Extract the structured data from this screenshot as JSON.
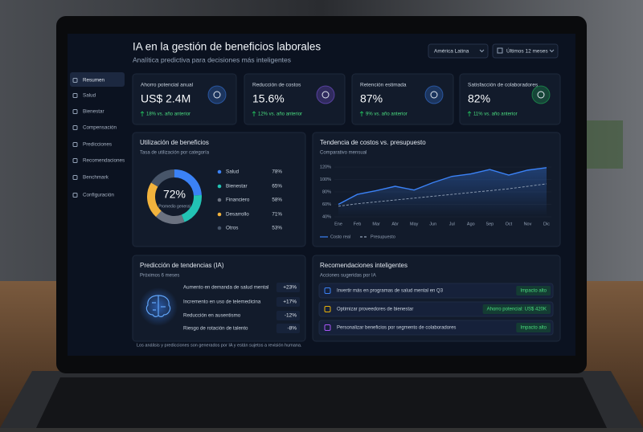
{
  "header": {
    "title": "IA en la gestión de beneficios laborales",
    "subtitle": "Analítica predictiva para decisiones más inteligentes",
    "region": "América Latina",
    "period": "Últimos 12 meses"
  },
  "sidebar": [
    "Resumen",
    "Salud",
    "Bienestar",
    "Compensación",
    "Predicciones",
    "Recomendaciones",
    "Benchmark",
    "Configuración"
  ],
  "kpis": [
    {
      "label": "Ahorro potencial anual",
      "value": "US$ 2.4M",
      "change": "18% vs. año anterior"
    },
    {
      "label": "Reducción de costos",
      "value": "15.6%",
      "change": "12% vs. año anterior"
    },
    {
      "label": "Retención estimada",
      "value": "87%",
      "change": "9% vs. año anterior"
    },
    {
      "label": "Satisfacción de colaboradores",
      "value": "82%",
      "change": "11% vs. año anterior"
    }
  ],
  "utilization": {
    "title": "Utilización de beneficios",
    "subtitle": "Tasa de utilización por categoría",
    "center_value": "72%",
    "center_label": "Promedio general",
    "categories": [
      "Salud",
      "Bienestar",
      "Financiero",
      "Desarrollo",
      "Otros"
    ],
    "values": [
      78,
      65,
      58,
      71,
      53
    ],
    "value_labels": [
      "78%",
      "65%",
      "58%",
      "71%",
      "53%"
    ],
    "colors": [
      "#3b82f6",
      "#22c3b4",
      "#6b7280",
      "#f2b33d",
      "#475569"
    ]
  },
  "trend": {
    "type": "line",
    "title": "Tendencia de costos vs. presupuesto",
    "subtitle": "Comparativo mensual",
    "categories": [
      "Ene",
      "Feb",
      "Mar",
      "Abr",
      "May",
      "Jun",
      "Jul",
      "Ago",
      "Sep",
      "Oct",
      "Nov",
      "Dic"
    ],
    "series": [
      {
        "name": "Costo real",
        "color": "#3b82f6",
        "values": [
          60,
          76,
          82,
          89,
          83,
          95,
          105,
          109,
          116,
          107,
          115,
          119
        ]
      },
      {
        "name": "Presupuesto",
        "color": "#94a3b8",
        "values": [
          57,
          61,
          64,
          67,
          70,
          73,
          76,
          79,
          82,
          85,
          89,
          93
        ]
      }
    ],
    "ylim": [
      40,
      120
    ],
    "yticks": [
      {
        "value": 40,
        "label": "40%"
      },
      {
        "value": 60,
        "label": "60%"
      },
      {
        "value": 80,
        "label": "80%"
      },
      {
        "value": 100,
        "label": "100%"
      },
      {
        "value": 120,
        "label": "120%"
      }
    ]
  },
  "predictions": {
    "title": "Predicción de tendencias (IA)",
    "subtitle": "Próximos 6 meses",
    "items": [
      {
        "label": "Aumento en demanda de salud mental",
        "value": "+23%"
      },
      {
        "label": "Incremento en uso de telemedicina",
        "value": "+17%"
      },
      {
        "label": "Reducción en ausentismo",
        "value": "-12%"
      },
      {
        "label": "Riesgo de rotación de talento",
        "value": "-8%"
      }
    ]
  },
  "recommendations": {
    "title": "Recomendaciones inteligentes",
    "subtitle": "Acciones sugeridas por IA",
    "items": [
      {
        "text": "Invertir más en programas de salud mental en Q3",
        "tag": "Impacto alto"
      },
      {
        "text": "Optimizar proveedores de bienestar",
        "tag": "Ahorro potencial: US$ 420K"
      },
      {
        "text": "Personalizar beneficios por segmento de colaboradores",
        "tag": "Impacto alto"
      }
    ]
  },
  "footnote": "Los análisis y predicciones son generados por IA y están sujetos a revisión humana."
}
